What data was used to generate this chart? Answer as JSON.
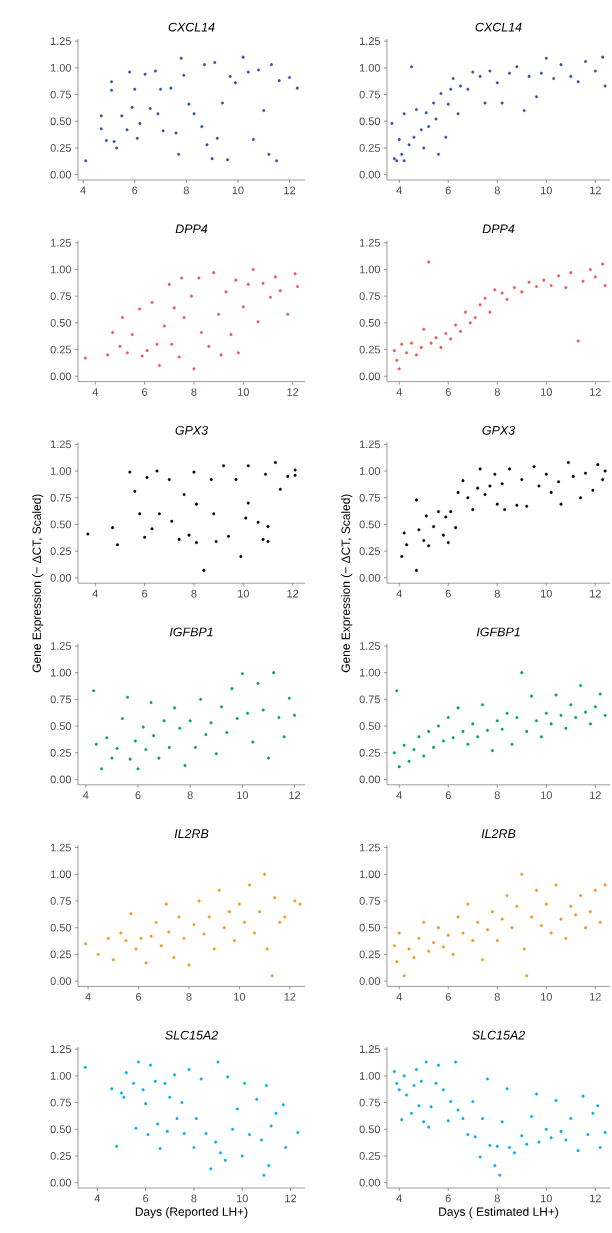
{
  "chart_data": [
    {
      "type": "scatter",
      "title": "CXCL14",
      "color": "#3953a4",
      "marker": "circle",
      "xlim": [
        3.8,
        12.6
      ],
      "ylim": [
        -0.05,
        1.27
      ],
      "xticks": [
        4,
        6,
        8,
        10,
        12
      ],
      "yticks": [
        {
          "value": 0,
          "label": "0.00"
        },
        {
          "value": 0.25,
          "label": "0.25"
        },
        {
          "value": 0.5,
          "label": "0.50"
        },
        {
          "value": 0.75,
          "label": "0.75"
        },
        {
          "value": 1,
          "label": "1.00"
        },
        {
          "value": 1.25,
          "label": "1.25"
        }
      ],
      "x": [
        4.1,
        4.7,
        4.7,
        4.9,
        5.1,
        5.1,
        5.2,
        5.3,
        5.5,
        5.7,
        5.8,
        5.9,
        6.0,
        6.1,
        6.2,
        6.4,
        6.6,
        6.8,
        6.9,
        7.0,
        7.1,
        7.4,
        7.6,
        7.7,
        7.8,
        7.9,
        8.1,
        8.3,
        8.6,
        8.7,
        8.8,
        9.0,
        9.1,
        9.2,
        9.4,
        9.6,
        9.7,
        9.9,
        10.2,
        10.4,
        10.6,
        10.8,
        11.0,
        11.2,
        11.3,
        11.5,
        11.6,
        12.0,
        12.3
      ],
      "values": [
        0.13,
        0.55,
        0.43,
        0.32,
        0.87,
        0.79,
        0.31,
        0.25,
        0.55,
        0.42,
        0.96,
        0.63,
        0.8,
        0.34,
        0.48,
        0.94,
        0.62,
        0.97,
        0.57,
        0.8,
        0.41,
        0.81,
        0.39,
        0.19,
        1.09,
        0.93,
        0.66,
        0.57,
        0.45,
        1.03,
        0.28,
        0.15,
        1.05,
        0.34,
        0.67,
        0.14,
        0.92,
        0.86,
        1.1,
        0.96,
        0.33,
        0.98,
        0.6,
        0.19,
        1.03,
        0.13,
        0.88,
        0.91,
        0.81
      ]
    },
    {
      "type": "scatter",
      "title": "CXCL14",
      "color": "#3953a4",
      "marker": "circle",
      "xlim": [
        3.5,
        12.6
      ],
      "ylim": [
        -0.05,
        1.27
      ],
      "xticks": [
        4,
        6,
        8,
        10,
        12
      ],
      "yticks": [
        {
          "value": 0,
          "label": "0.00"
        },
        {
          "value": 0.25,
          "label": "0.25"
        },
        {
          "value": 0.5,
          "label": "0.50"
        },
        {
          "value": 0.75,
          "label": "0.75"
        },
        {
          "value": 1,
          "label": "1.00"
        },
        {
          "value": 1.25,
          "label": "1.25"
        }
      ],
      "x": [
        3.7,
        3.8,
        3.9,
        4.0,
        4.1,
        4.2,
        4.2,
        4.4,
        4.5,
        4.6,
        4.7,
        4.9,
        5.0,
        5.1,
        5.2,
        5.4,
        5.5,
        5.6,
        5.7,
        5.9,
        6.0,
        6.1,
        6.2,
        6.4,
        6.5,
        6.8,
        7.0,
        7.3,
        7.5,
        7.7,
        8.0,
        8.2,
        8.5,
        8.8,
        9.1,
        9.3,
        9.6,
        9.8,
        10.0,
        10.3,
        10.6,
        11.0,
        11.3,
        11.6,
        12.0,
        12.3,
        12.4
      ],
      "values": [
        0.48,
        0.15,
        0.13,
        0.33,
        0.19,
        0.13,
        0.57,
        0.28,
        1.01,
        0.35,
        0.61,
        0.42,
        0.25,
        0.58,
        0.45,
        0.67,
        0.52,
        0.19,
        0.76,
        0.35,
        0.66,
        0.8,
        0.9,
        0.57,
        0.83,
        0.8,
        0.96,
        0.92,
        0.67,
        0.97,
        0.86,
        0.67,
        0.95,
        1.01,
        0.6,
        0.92,
        0.73,
        0.95,
        1.09,
        0.9,
        1.03,
        0.92,
        0.87,
        1.06,
        0.97,
        1.1,
        0.83
      ]
    },
    {
      "type": "scatter",
      "title": "DPP4",
      "color": "#ef5656",
      "marker": "circle",
      "xlim": [
        3.3,
        12.5
      ],
      "ylim": [
        -0.05,
        1.27
      ],
      "xticks": [
        4,
        6,
        8,
        10,
        12
      ],
      "yticks": [
        {
          "value": 0,
          "label": "0.00"
        },
        {
          "value": 0.25,
          "label": "0.25"
        },
        {
          "value": 0.5,
          "label": "0.50"
        },
        {
          "value": 0.75,
          "label": "0.75"
        },
        {
          "value": 1,
          "label": "1.00"
        },
        {
          "value": 1.25,
          "label": "1.25"
        }
      ],
      "x": [
        3.6,
        4.5,
        4.7,
        5.0,
        5.1,
        5.3,
        5.5,
        5.8,
        5.9,
        6.1,
        6.3,
        6.5,
        6.6,
        6.8,
        7.0,
        7.1,
        7.2,
        7.4,
        7.5,
        7.6,
        7.9,
        8.0,
        8.2,
        8.3,
        8.6,
        8.8,
        9.0,
        9.1,
        9.3,
        9.5,
        9.7,
        9.8,
        10.0,
        10.2,
        10.4,
        10.6,
        10.8,
        11.1,
        11.3,
        11.5,
        11.8,
        12.1,
        12.2
      ],
      "values": [
        0.17,
        0.2,
        0.41,
        0.28,
        0.55,
        0.22,
        0.39,
        0.63,
        0.19,
        0.24,
        0.69,
        0.3,
        0.1,
        0.47,
        0.86,
        0.3,
        0.64,
        0.18,
        0.92,
        0.55,
        0.75,
        0.07,
        0.92,
        0.41,
        0.28,
        0.97,
        0.58,
        0.2,
        0.79,
        0.39,
        0.9,
        0.22,
        0.65,
        0.86,
        1.0,
        0.51,
        0.87,
        0.74,
        0.93,
        0.8,
        0.58,
        0.96,
        0.84
      ]
    },
    {
      "type": "scatter",
      "title": "DPP4",
      "color": "#ef5656",
      "marker": "circle",
      "xlim": [
        3.5,
        12.6
      ],
      "ylim": [
        -0.05,
        1.27
      ],
      "xticks": [
        4,
        6,
        8,
        10,
        12
      ],
      "yticks": [
        {
          "value": 0,
          "label": "0.00"
        },
        {
          "value": 0.25,
          "label": "0.25"
        },
        {
          "value": 0.5,
          "label": "0.50"
        },
        {
          "value": 0.75,
          "label": "0.75"
        },
        {
          "value": 1,
          "label": "1.00"
        },
        {
          "value": 1.25,
          "label": "1.25"
        }
      ],
      "x": [
        3.8,
        3.9,
        4.0,
        4.1,
        4.3,
        4.5,
        4.7,
        4.9,
        5.0,
        5.2,
        5.3,
        5.5,
        5.7,
        5.9,
        6.1,
        6.3,
        6.5,
        6.7,
        6.9,
        7.1,
        7.3,
        7.5,
        7.7,
        7.9,
        8.2,
        8.4,
        8.7,
        9.0,
        9.3,
        9.6,
        9.9,
        10.2,
        10.5,
        10.8,
        11.0,
        11.3,
        11.5,
        11.8,
        12.0,
        12.3,
        12.4
      ],
      "values": [
        0.24,
        0.15,
        0.07,
        0.3,
        0.22,
        0.31,
        0.2,
        0.27,
        0.44,
        1.07,
        0.31,
        0.36,
        0.27,
        0.4,
        0.35,
        0.48,
        0.42,
        0.6,
        0.5,
        0.55,
        0.67,
        0.73,
        0.6,
        0.81,
        0.78,
        0.72,
        0.83,
        0.79,
        0.88,
        0.84,
        0.9,
        0.85,
        0.94,
        0.83,
        0.97,
        0.33,
        0.89,
        1.0,
        0.93,
        1.05,
        0.85
      ]
    },
    {
      "type": "scatter",
      "title": "GPX3",
      "ylabel": "Gene Expression (− ΔCT, Scaled)",
      "color": "#000000",
      "marker": "circle",
      "xlim": [
        3.3,
        12.5
      ],
      "ylim": [
        -0.05,
        1.27
      ],
      "xticks": [
        4,
        6,
        8,
        10,
        12
      ],
      "yticks": [
        {
          "value": 0,
          "label": "0.00"
        },
        {
          "value": 0.25,
          "label": "0.25"
        },
        {
          "value": 0.5,
          "label": "0.50"
        },
        {
          "value": 0.75,
          "label": "0.75"
        },
        {
          "value": 1,
          "label": "1.00"
        },
        {
          "value": 1.25,
          "label": "1.25"
        }
      ],
      "x": [
        3.7,
        4.7,
        4.9,
        5.4,
        5.6,
        5.8,
        6.0,
        6.1,
        6.3,
        6.5,
        6.6,
        7.0,
        7.1,
        7.4,
        7.6,
        7.8,
        8.0,
        8.1,
        8.1,
        8.4,
        8.7,
        8.8,
        8.9,
        9.2,
        9.4,
        9.7,
        9.9,
        10.1,
        10.2,
        10.2,
        10.6,
        10.8,
        10.9,
        11.0,
        11.0,
        11.3,
        11.5,
        11.8,
        12.1,
        12.1
      ],
      "values": [
        0.41,
        0.47,
        0.31,
        0.99,
        0.81,
        0.6,
        0.38,
        0.94,
        0.46,
        1.0,
        0.6,
        0.92,
        0.53,
        0.36,
        0.78,
        0.4,
        0.99,
        0.69,
        0.33,
        0.07,
        0.92,
        0.6,
        0.34,
        1.05,
        0.39,
        0.92,
        0.2,
        0.56,
        1.05,
        0.7,
        0.52,
        0.36,
        0.97,
        0.48,
        0.34,
        1.08,
        0.83,
        0.95,
        1.01,
        0.96
      ]
    },
    {
      "type": "scatter",
      "title": "GPX3",
      "ylabel": "Gene Expression (− ΔCT, Scaled)",
      "color": "#000000",
      "marker": "circle",
      "xlim": [
        3.5,
        12.6
      ],
      "ylim": [
        -0.05,
        1.27
      ],
      "xticks": [
        4,
        6,
        8,
        10,
        12
      ],
      "yticks": [
        {
          "value": 0,
          "label": "0.00"
        },
        {
          "value": 0.25,
          "label": "0.25"
        },
        {
          "value": 0.5,
          "label": "0.50"
        },
        {
          "value": 0.75,
          "label": "0.75"
        },
        {
          "value": 1,
          "label": "1.00"
        },
        {
          "value": 1.25,
          "label": "1.25"
        }
      ],
      "x": [
        4.1,
        4.2,
        4.3,
        4.7,
        4.7,
        4.8,
        5.0,
        5.1,
        5.2,
        5.4,
        5.6,
        5.8,
        5.9,
        6.0,
        6.1,
        6.3,
        6.4,
        6.6,
        6.8,
        7.0,
        7.2,
        7.3,
        7.5,
        7.7,
        7.9,
        8.0,
        8.2,
        8.3,
        8.5,
        8.8,
        9.0,
        9.2,
        9.5,
        9.7,
        10.0,
        10.2,
        10.5,
        10.6,
        10.9,
        11.1,
        11.4,
        11.6,
        11.9,
        12.1,
        12.3,
        12.4
      ],
      "values": [
        0.2,
        0.42,
        0.31,
        0.07,
        0.73,
        0.45,
        0.35,
        0.58,
        0.3,
        0.48,
        0.62,
        0.4,
        0.57,
        0.33,
        0.62,
        0.47,
        0.8,
        0.91,
        0.75,
        0.64,
        0.84,
        1.02,
        0.78,
        0.86,
        0.97,
        0.69,
        0.88,
        0.64,
        1.02,
        0.68,
        0.92,
        0.67,
        1.04,
        0.86,
        0.97,
        0.8,
        0.9,
        0.69,
        1.08,
        0.95,
        0.75,
        0.98,
        0.82,
        1.06,
        0.92,
        1.0
      ]
    },
    {
      "type": "scatter",
      "title": "IGFBP1",
      "color": "#00a651",
      "marker": "circle",
      "xlim": [
        3.7,
        12.4
      ],
      "ylim": [
        -0.05,
        1.27
      ],
      "xticks": [
        4,
        6,
        8,
        10,
        12
      ],
      "yticks": [
        {
          "value": 0,
          "label": "0.00"
        },
        {
          "value": 0.25,
          "label": "0.25"
        },
        {
          "value": 0.5,
          "label": "0.50"
        },
        {
          "value": 0.75,
          "label": "0.75"
        },
        {
          "value": 1,
          "label": "1.00"
        },
        {
          "value": 1.25,
          "label": "1.25"
        }
      ],
      "x": [
        4.3,
        4.4,
        4.6,
        4.8,
        5.0,
        5.2,
        5.4,
        5.6,
        5.7,
        5.9,
        6.0,
        6.2,
        6.3,
        6.5,
        6.6,
        6.8,
        7.0,
        7.2,
        7.4,
        7.6,
        7.8,
        8.0,
        8.2,
        8.4,
        8.6,
        8.8,
        9.0,
        9.2,
        9.4,
        9.6,
        9.8,
        10.0,
        10.2,
        10.4,
        10.6,
        10.8,
        11.0,
        11.2,
        11.4,
        11.6,
        11.8,
        12.0
      ],
      "values": [
        0.83,
        0.33,
        0.1,
        0.39,
        0.2,
        0.29,
        0.57,
        0.77,
        0.19,
        0.36,
        0.1,
        0.49,
        0.28,
        0.72,
        0.41,
        0.2,
        0.55,
        0.3,
        0.67,
        0.48,
        0.13,
        0.55,
        0.3,
        0.75,
        0.42,
        0.53,
        0.24,
        0.68,
        0.44,
        0.85,
        0.57,
        0.99,
        0.62,
        0.35,
        0.9,
        0.65,
        0.2,
        1.0,
        0.58,
        0.4,
        0.76,
        0.6
      ]
    },
    {
      "type": "scatter",
      "title": "IGFBP1",
      "color": "#00a651",
      "marker": "circle",
      "xlim": [
        3.5,
        12.6
      ],
      "ylim": [
        -0.05,
        1.27
      ],
      "xticks": [
        4,
        6,
        8,
        10,
        12
      ],
      "yticks": [
        {
          "value": 0,
          "label": "0.00"
        },
        {
          "value": 0.25,
          "label": "0.25"
        },
        {
          "value": 0.5,
          "label": "0.50"
        },
        {
          "value": 0.75,
          "label": "0.75"
        },
        {
          "value": 1,
          "label": "1.00"
        },
        {
          "value": 1.25,
          "label": "1.25"
        }
      ],
      "x": [
        3.8,
        3.9,
        4.0,
        4.2,
        4.4,
        4.6,
        4.8,
        5.0,
        5.2,
        5.4,
        5.6,
        5.8,
        6.0,
        6.2,
        6.4,
        6.6,
        6.8,
        7.0,
        7.2,
        7.4,
        7.6,
        7.8,
        8.0,
        8.2,
        8.4,
        8.6,
        8.8,
        9.0,
        9.2,
        9.4,
        9.6,
        9.8,
        10.0,
        10.2,
        10.4,
        10.6,
        10.8,
        11.0,
        11.2,
        11.4,
        11.6,
        11.8,
        12.0,
        12.2,
        12.4
      ],
      "values": [
        0.25,
        0.83,
        0.12,
        0.32,
        0.17,
        0.28,
        0.4,
        0.22,
        0.45,
        0.3,
        0.5,
        0.36,
        0.58,
        0.39,
        0.67,
        0.45,
        0.33,
        0.52,
        0.4,
        0.7,
        0.46,
        0.27,
        0.55,
        0.47,
        0.62,
        0.33,
        0.58,
        1.0,
        0.45,
        0.78,
        0.55,
        0.4,
        0.62,
        0.52,
        0.79,
        0.6,
        0.48,
        0.7,
        0.58,
        0.88,
        0.63,
        0.52,
        0.68,
        0.8,
        0.6
      ]
    },
    {
      "type": "scatter",
      "title": "IL2RB",
      "color": "#f7941d",
      "marker": "circle",
      "xlim": [
        3.6,
        12.6
      ],
      "ylim": [
        -0.05,
        1.27
      ],
      "xticks": [
        4,
        6,
        8,
        10,
        12
      ],
      "yticks": [
        {
          "value": 0,
          "label": "0.00"
        },
        {
          "value": 0.25,
          "label": "0.25"
        },
        {
          "value": 0.5,
          "label": "0.50"
        },
        {
          "value": 0.75,
          "label": "0.75"
        },
        {
          "value": 1,
          "label": "1.00"
        },
        {
          "value": 1.25,
          "label": "1.25"
        }
      ],
      "x": [
        3.9,
        4.4,
        4.8,
        5.0,
        5.3,
        5.5,
        5.7,
        5.9,
        6.1,
        6.3,
        6.5,
        6.7,
        6.9,
        7.1,
        7.2,
        7.4,
        7.6,
        7.8,
        8.0,
        8.2,
        8.4,
        8.6,
        8.8,
        9.0,
        9.2,
        9.4,
        9.6,
        9.8,
        10.0,
        10.2,
        10.4,
        10.6,
        10.8,
        11.0,
        11.1,
        11.3,
        11.4,
        11.6,
        11.8,
        12.2,
        12.4
      ],
      "values": [
        0.35,
        0.25,
        0.4,
        0.2,
        0.45,
        0.38,
        0.63,
        0.3,
        0.4,
        0.17,
        0.42,
        0.55,
        0.33,
        0.72,
        0.46,
        0.22,
        0.6,
        0.4,
        0.15,
        0.53,
        0.75,
        0.44,
        0.6,
        0.3,
        0.85,
        0.5,
        0.65,
        0.38,
        0.72,
        0.55,
        0.9,
        0.45,
        0.65,
        1.0,
        0.3,
        0.05,
        0.78,
        0.55,
        0.6,
        0.75,
        0.72
      ]
    },
    {
      "type": "scatter",
      "title": "IL2RB",
      "color": "#f7941d",
      "marker": "circle",
      "xlim": [
        3.5,
        12.6
      ],
      "ylim": [
        -0.05,
        1.27
      ],
      "xticks": [
        4,
        6,
        8,
        10,
        12
      ],
      "yticks": [
        {
          "value": 0,
          "label": "0.00"
        },
        {
          "value": 0.25,
          "label": "0.25"
        },
        {
          "value": 0.5,
          "label": "0.50"
        },
        {
          "value": 0.75,
          "label": "0.75"
        },
        {
          "value": 1,
          "label": "1.00"
        },
        {
          "value": 1.25,
          "label": "1.25"
        }
      ],
      "x": [
        3.8,
        3.9,
        4.0,
        4.2,
        4.4,
        4.6,
        4.8,
        5.0,
        5.2,
        5.4,
        5.6,
        5.8,
        6.0,
        6.2,
        6.4,
        6.6,
        6.8,
        7.0,
        7.2,
        7.4,
        7.6,
        7.8,
        8.0,
        8.2,
        8.4,
        8.6,
        8.8,
        9.0,
        9.1,
        9.2,
        9.4,
        9.6,
        9.8,
        10.0,
        10.2,
        10.4,
        10.6,
        10.8,
        11.0,
        11.2,
        11.4,
        11.6,
        11.8,
        12.0,
        12.2,
        12.4
      ],
      "values": [
        0.33,
        0.18,
        0.45,
        0.05,
        0.3,
        0.22,
        0.4,
        0.55,
        0.28,
        0.36,
        0.5,
        0.32,
        0.43,
        0.25,
        0.6,
        0.45,
        0.72,
        0.38,
        0.55,
        0.2,
        0.48,
        0.65,
        0.38,
        0.58,
        0.8,
        0.5,
        0.7,
        1.0,
        0.3,
        0.05,
        0.6,
        0.85,
        0.52,
        0.72,
        0.45,
        0.9,
        0.58,
        0.4,
        0.7,
        0.62,
        0.8,
        0.5,
        0.65,
        0.85,
        0.55,
        0.9
      ]
    },
    {
      "type": "scatter",
      "title": "SLC15A2",
      "xlabel": "Days (Reported LH+)",
      "color": "#00aee6",
      "marker": "circle",
      "xlim": [
        3.2,
        12.6
      ],
      "ylim": [
        -0.05,
        1.27
      ],
      "xticks": [
        4,
        6,
        8,
        10,
        12
      ],
      "yticks": [
        {
          "value": 0,
          "label": "0.00"
        },
        {
          "value": 0.25,
          "label": "0.25"
        },
        {
          "value": 0.5,
          "label": "0.50"
        },
        {
          "value": 0.75,
          "label": "0.75"
        },
        {
          "value": 1,
          "label": "1.00"
        },
        {
          "value": 1.25,
          "label": "1.25"
        }
      ],
      "x": [
        3.5,
        4.6,
        4.8,
        5.0,
        5.1,
        5.2,
        5.5,
        5.6,
        5.7,
        5.9,
        6.0,
        6.1,
        6.2,
        6.4,
        6.5,
        6.6,
        6.8,
        6.9,
        7.0,
        7.2,
        7.3,
        7.5,
        7.6,
        7.8,
        8.0,
        8.1,
        8.3,
        8.5,
        8.7,
        8.9,
        9.0,
        9.1,
        9.3,
        9.4,
        9.6,
        9.8,
        10.0,
        10.1,
        10.3,
        10.6,
        10.8,
        10.9,
        11.0,
        11.1,
        11.2,
        11.4,
        11.7,
        11.8,
        12.3
      ],
      "values": [
        1.08,
        0.88,
        0.34,
        0.84,
        0.8,
        1.03,
        0.93,
        0.51,
        1.13,
        0.87,
        0.74,
        0.45,
        1.1,
        0.95,
        0.55,
        0.32,
        0.93,
        0.48,
        0.8,
        1.01,
        0.6,
        0.75,
        0.46,
        1.06,
        0.33,
        0.6,
        0.97,
        0.46,
        0.13,
        0.38,
        1.13,
        0.28,
        0.21,
        0.99,
        0.5,
        0.69,
        0.25,
        0.93,
        0.45,
        0.78,
        0.4,
        0.07,
        0.91,
        0.16,
        0.53,
        0.65,
        0.73,
        0.33,
        0.47
      ]
    },
    {
      "type": "scatter",
      "title": "SLC15A2",
      "xlabel": "Days ( Estimated LH+)",
      "color": "#00aee6",
      "marker": "circle",
      "xlim": [
        3.5,
        12.6
      ],
      "ylim": [
        -0.05,
        1.27
      ],
      "xticks": [
        4,
        6,
        8,
        10,
        12
      ],
      "yticks": [
        {
          "value": 0,
          "label": "0.00"
        },
        {
          "value": 0.25,
          "label": "0.25"
        },
        {
          "value": 0.5,
          "label": "0.50"
        },
        {
          "value": 0.75,
          "label": "0.75"
        },
        {
          "value": 1,
          "label": "1.00"
        },
        {
          "value": 1.25,
          "label": "1.25"
        }
      ],
      "x": [
        3.8,
        3.9,
        4.0,
        4.1,
        4.2,
        4.3,
        4.5,
        4.6,
        4.7,
        4.8,
        4.9,
        5.0,
        5.1,
        5.2,
        5.3,
        5.5,
        5.6,
        5.8,
        6.0,
        6.1,
        6.3,
        6.4,
        6.6,
        6.8,
        7.0,
        7.1,
        7.3,
        7.4,
        7.6,
        7.7,
        7.9,
        8.0,
        8.1,
        8.2,
        8.4,
        8.5,
        8.7,
        9.0,
        9.2,
        9.4,
        9.6,
        9.7,
        10.0,
        10.2,
        10.4,
        10.6,
        10.8,
        11.0,
        11.3,
        11.5,
        11.7,
        11.9,
        12.1,
        12.2,
        12.4
      ],
      "values": [
        1.04,
        0.93,
        0.87,
        0.59,
        1.0,
        0.82,
        0.65,
        0.91,
        1.06,
        0.72,
        0.95,
        0.57,
        1.13,
        0.52,
        0.71,
        0.93,
        1.1,
        0.87,
        0.58,
        0.76,
        1.13,
        0.68,
        0.6,
        0.45,
        0.76,
        0.43,
        0.24,
        0.6,
        0.97,
        0.35,
        0.16,
        0.34,
        0.07,
        0.57,
        0.88,
        0.33,
        0.28,
        0.44,
        0.36,
        0.62,
        0.83,
        0.38,
        0.5,
        0.42,
        0.77,
        0.48,
        0.4,
        0.6,
        0.3,
        0.81,
        0.45,
        0.65,
        0.72,
        0.33,
        0.47
      ]
    }
  ]
}
